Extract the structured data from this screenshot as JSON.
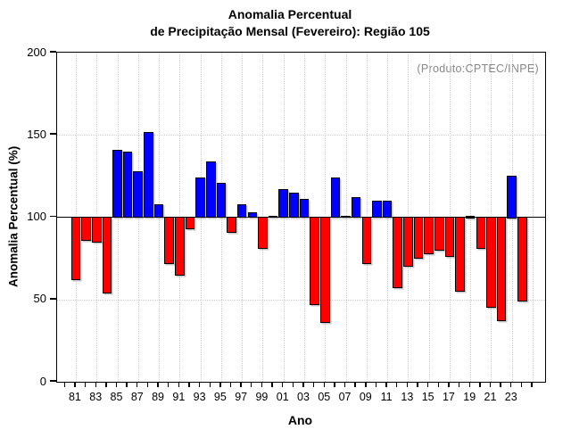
{
  "title": {
    "line1": "Anomalia Percentual",
    "line2": "de Precipitação Mensal (Fevereiro): Região 105"
  },
  "watermark": "(Produto:CPTEC/INPE)",
  "chart_data": {
    "type": "bar",
    "title": "Anomalia Percentual de Precipitação Mensal (Fevereiro): Região 105",
    "xlabel": "Ano",
    "ylabel": "Anomalia Percentual (%)",
    "ylim": [
      0,
      200
    ],
    "yticks": [
      0,
      50,
      100,
      150,
      200
    ],
    "hgrid_at": [
      50,
      150
    ],
    "baseline": 100,
    "x_domain": [
      1979.2,
      2026.2
    ],
    "grid": "dotted",
    "legend": "none",
    "colors": {
      "above_baseline": "#0000ff",
      "below_baseline": "#ff0000",
      "bar_outline": "#000000",
      "grid": "#cfcfcf",
      "watermark": "#878787"
    },
    "years": [
      1981,
      1982,
      1983,
      1984,
      1985,
      1986,
      1987,
      1988,
      1989,
      1990,
      1991,
      1992,
      1993,
      1994,
      1995,
      1996,
      1997,
      1998,
      1999,
      2000,
      2001,
      2002,
      2003,
      2004,
      2005,
      2006,
      2007,
      2008,
      2009,
      2010,
      2011,
      2012,
      2013,
      2014,
      2015,
      2016,
      2017,
      2018,
      2019,
      2020,
      2021,
      2022,
      2023,
      2024
    ],
    "values": [
      62,
      86,
      85,
      54,
      141,
      140,
      128,
      152,
      108,
      72,
      65,
      93,
      124,
      134,
      121,
      91,
      108,
      103,
      81,
      101,
      117,
      115,
      111,
      47,
      36,
      124,
      101,
      112,
      72,
      110,
      110,
      57,
      70,
      75,
      78,
      80,
      76,
      55,
      100,
      81,
      45,
      37,
      125,
      49
    ],
    "minor_tick_years": [
      1980,
      2025
    ],
    "xtick_label_years": [
      1981,
      1983,
      1985,
      1987,
      1989,
      1991,
      1993,
      1995,
      1997,
      1999,
      2001,
      2003,
      2005,
      2007,
      2009,
      2011,
      2013,
      2015,
      2017,
      2019,
      2021,
      2023
    ],
    "xtick_labels": [
      "81",
      "83",
      "85",
      "87",
      "89",
      "91",
      "93",
      "95",
      "97",
      "99",
      "01",
      "03",
      "05",
      "07",
      "09",
      "11",
      "13",
      "15",
      "17",
      "19",
      "21",
      "23"
    ],
    "vgrid_years": [
      1981,
      1983,
      1985,
      1987,
      1989,
      1991,
      1993,
      1995,
      1997,
      1999,
      2001,
      2003,
      2005,
      2007,
      2009,
      2011,
      2013,
      2015,
      2017,
      2019,
      2021,
      2023,
      2025
    ]
  }
}
